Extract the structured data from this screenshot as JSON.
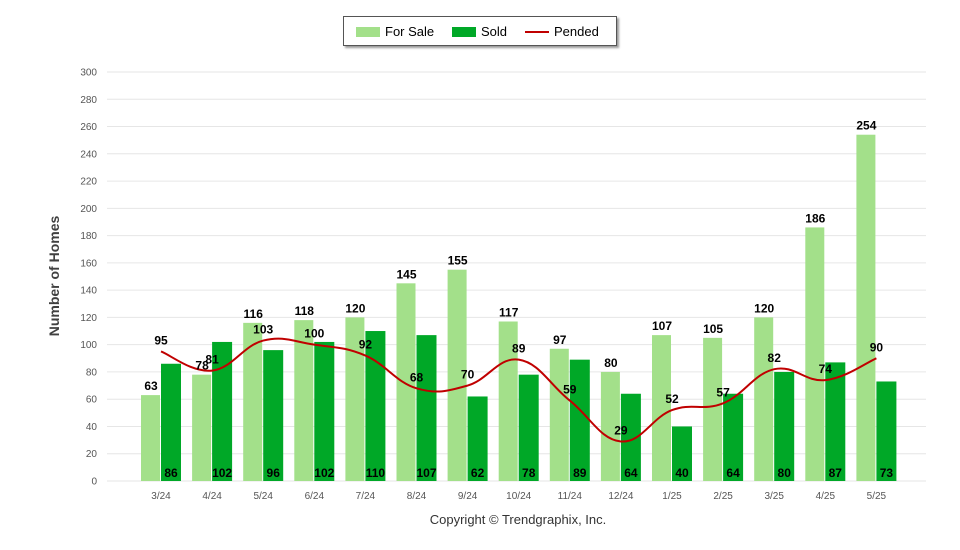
{
  "legend": {
    "for_sale": "For Sale",
    "sold": "Sold",
    "pended": "Pended"
  },
  "copyright": "Copyright © Trendgraphix, Inc.",
  "colors": {
    "for_sale": "#a3e08a",
    "sold": "#00a827",
    "pended": "#c00000",
    "grid": "#e6e6e6"
  },
  "chart_data": {
    "type": "bar",
    "ylabel": "Number of Homes",
    "ylim": [
      0,
      300
    ],
    "yticks": [
      0,
      20,
      40,
      60,
      80,
      100,
      120,
      140,
      160,
      180,
      200,
      220,
      240,
      260,
      280,
      300
    ],
    "categories": [
      "3/24",
      "4/24",
      "5/24",
      "6/24",
      "7/24",
      "8/24",
      "9/24",
      "10/24",
      "11/24",
      "12/24",
      "1/25",
      "2/25",
      "3/25",
      "4/25",
      "5/25"
    ],
    "series": [
      {
        "name": "For Sale",
        "type": "bar",
        "values": [
          63,
          78,
          116,
          118,
          120,
          145,
          155,
          117,
          97,
          80,
          107,
          105,
          120,
          186,
          254
        ]
      },
      {
        "name": "Sold",
        "type": "bar",
        "values": [
          86,
          102,
          96,
          102,
          110,
          107,
          62,
          78,
          89,
          64,
          40,
          64,
          80,
          87,
          73
        ]
      },
      {
        "name": "Pended",
        "type": "line",
        "values": [
          95,
          81,
          103,
          100,
          92,
          68,
          70,
          89,
          59,
          29,
          52,
          57,
          82,
          74,
          90
        ]
      }
    ],
    "grid": true,
    "legend_position": "top-center"
  }
}
